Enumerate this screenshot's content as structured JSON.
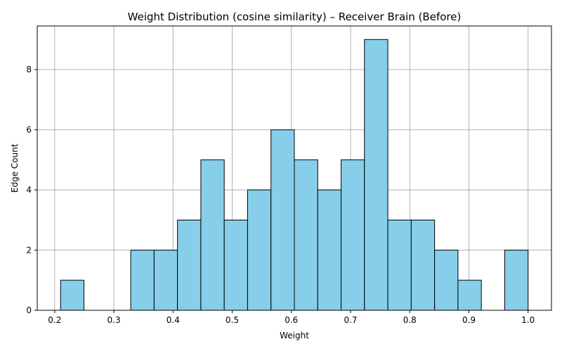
{
  "chart_data": {
    "type": "bar",
    "title": "Weight Distribution (cosine similarity) – Receiver Brain (Before)",
    "xlabel": "Weight",
    "ylabel": "Edge Count",
    "bin_edges": [
      0.21,
      0.2495,
      0.289,
      0.3285,
      0.368,
      0.4075,
      0.447,
      0.4865,
      0.526,
      0.5655,
      0.605,
      0.6445,
      0.684,
      0.7235,
      0.763,
      0.8025,
      0.842,
      0.8815,
      0.921,
      0.9605,
      1.0
    ],
    "counts": [
      1,
      0,
      0,
      2,
      2,
      3,
      5,
      3,
      4,
      6,
      5,
      4,
      5,
      9,
      3,
      3,
      2,
      1,
      0,
      2
    ],
    "xlim": [
      0.1705,
      1.0395
    ],
    "ylim": [
      0,
      9.45
    ],
    "xticks": [
      0.2,
      0.3,
      0.4,
      0.5,
      0.6,
      0.7,
      0.8,
      0.9,
      1.0
    ],
    "xtick_labels": [
      "0.2",
      "0.3",
      "0.4",
      "0.5",
      "0.6",
      "0.7",
      "0.8",
      "0.9",
      "1.0"
    ],
    "yticks": [
      0,
      2,
      4,
      6,
      8
    ],
    "ytick_labels": [
      "0",
      "2",
      "4",
      "6",
      "8"
    ],
    "grid": true,
    "bar_color": "#87ceeb",
    "edge_color": "#000000"
  }
}
